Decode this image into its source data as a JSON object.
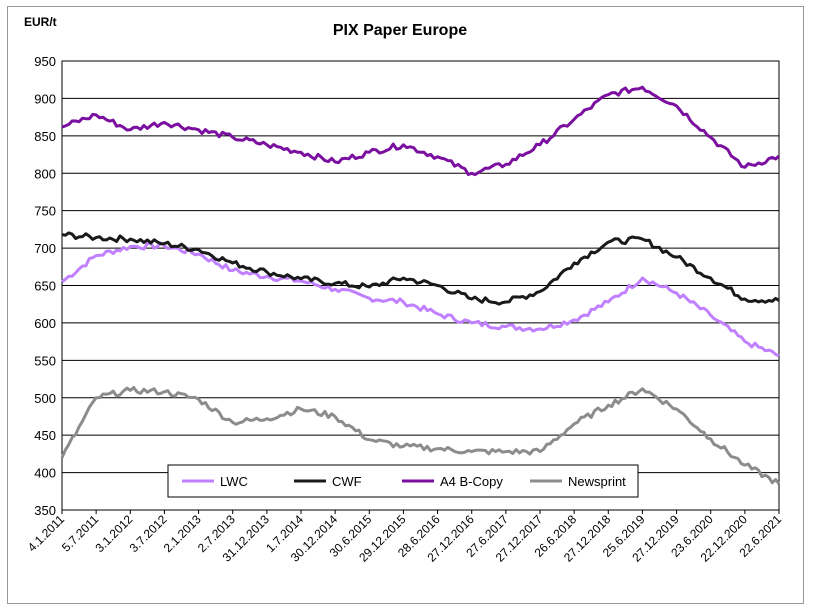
{
  "chart_data": {
    "type": "line",
    "title": "PIX Paper Europe",
    "ylabel": "EUR/t",
    "xlabel": "",
    "ylim": [
      350,
      950
    ],
    "yticks": [
      350,
      400,
      450,
      500,
      550,
      600,
      650,
      700,
      750,
      800,
      850,
      900,
      950
    ],
    "grid": "horizontal",
    "legend_position": "bottom-inside",
    "x_tick_labels": [
      "4.1.2011",
      "5.7.2011",
      "3.1.2012",
      "3.7.2012",
      "2.1.2013",
      "2.7.2013",
      "31.12.2013",
      "1.7.2014",
      "30.12.2014",
      "30.6.2015",
      "29.12.2015",
      "28.6.2016",
      "27.12.2016",
      "27.6.2017",
      "27.12.2017",
      "26.6.2018",
      "27.12.2018",
      "25.6.2019",
      "27.12.2019",
      "23.6.2020",
      "22.12.2020",
      "22.6.2021"
    ],
    "x": [
      "4.1.2011",
      "5.7.2011",
      "3.1.2012",
      "3.7.2012",
      "2.1.2013",
      "2.7.2013",
      "31.12.2013",
      "1.7.2014",
      "30.12.2014",
      "30.6.2015",
      "29.12.2015",
      "28.6.2016",
      "27.12.2016",
      "27.6.2017",
      "27.12.2017",
      "26.6.2018",
      "27.12.2018",
      "25.6.2019",
      "27.12.2019",
      "23.6.2020",
      "22.12.2020",
      "22.6.2021"
    ],
    "series": [
      {
        "name": "LWC",
        "color": "#c080ff",
        "values": [
          655,
          690,
          702,
          703,
          692,
          670,
          662,
          656,
          645,
          633,
          628,
          612,
          600,
          595,
          592,
          604,
          628,
          660,
          640,
          610,
          575,
          556
        ]
      },
      {
        "name": "CWF",
        "color": "#1a1a1a",
        "values": [
          718,
          714,
          712,
          706,
          698,
          680,
          668,
          659,
          653,
          648,
          660,
          650,
          632,
          628,
          642,
          680,
          708,
          712,
          688,
          660,
          632,
          630
        ]
      },
      {
        "name": "A4 B-Copy",
        "color": "#7a0fa0",
        "values": [
          862,
          878,
          858,
          868,
          858,
          848,
          838,
          828,
          815,
          828,
          838,
          822,
          800,
          812,
          838,
          872,
          905,
          915,
          890,
          848,
          808,
          823
        ]
      },
      {
        "name": "Newsprint",
        "color": "#8c8c8c",
        "values": [
          420,
          500,
          510,
          508,
          498,
          467,
          472,
          485,
          475,
          444,
          435,
          432,
          428,
          428,
          428,
          465,
          490,
          512,
          485,
          445,
          410,
          385
        ]
      }
    ]
  }
}
